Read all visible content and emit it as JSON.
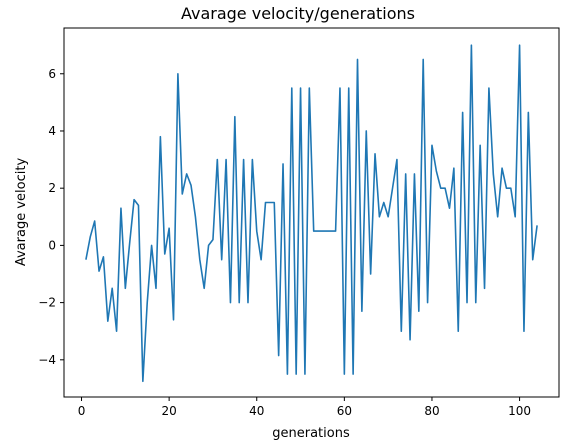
{
  "chart_data": {
    "type": "line",
    "title": "Avarage velocity/generations",
    "xlabel": "generations",
    "ylabel": "Avarage velocity",
    "xlim": [
      -4,
      109
    ],
    "ylim": [
      -5.3,
      7.6
    ],
    "xticks": [
      0,
      20,
      40,
      60,
      80,
      100
    ],
    "yticks": [
      -4,
      -2,
      0,
      2,
      4,
      6
    ],
    "xtick_labels": [
      "0",
      "20",
      "40",
      "60",
      "80",
      "100"
    ],
    "ytick_labels": [
      "−4",
      "−2",
      "0",
      "2",
      "4",
      "6"
    ],
    "grid": false,
    "legend": "none",
    "series": [
      {
        "color": "#1f77b4",
        "x": [
          1,
          2,
          3,
          4,
          5,
          6,
          7,
          8,
          9,
          10,
          11,
          12,
          13,
          14,
          15,
          16,
          17,
          18,
          19,
          20,
          21,
          22,
          23,
          24,
          25,
          26,
          27,
          28,
          29,
          30,
          31,
          32,
          33,
          34,
          35,
          36,
          37,
          38,
          39,
          40,
          41,
          42,
          43,
          44,
          45,
          46,
          47,
          48,
          49,
          50,
          51,
          52,
          53,
          54,
          55,
          56,
          57,
          58,
          59,
          60,
          61,
          62,
          63,
          64,
          65,
          66,
          67,
          68,
          69,
          70,
          71,
          72,
          73,
          74,
          75,
          76,
          77,
          78,
          79,
          80,
          81,
          82,
          83,
          84,
          85,
          86,
          87,
          88,
          89,
          90,
          91,
          92,
          93,
          94,
          95,
          96,
          97,
          98,
          99,
          100,
          101,
          102,
          103,
          104
        ],
        "y": [
          -0.5,
          0.3,
          0.85,
          -0.9,
          -0.4,
          -2.65,
          -1.5,
          -3.0,
          1.3,
          -1.5,
          0.1,
          1.6,
          1.4,
          -4.75,
          -2.0,
          0.0,
          -1.5,
          3.8,
          -0.3,
          0.6,
          -2.6,
          6.0,
          1.8,
          2.5,
          2.1,
          1.0,
          -0.5,
          -1.5,
          0.0,
          0.2,
          3.0,
          -0.5,
          3.0,
          -2.0,
          4.5,
          -2.0,
          3.0,
          -2.0,
          3.0,
          0.5,
          -0.5,
          1.5,
          1.5,
          1.5,
          -3.85,
          2.85,
          -4.5,
          5.5,
          -4.5,
          5.5,
          -4.5,
          5.5,
          0.5,
          0.5,
          0.5,
          0.5,
          0.5,
          0.5,
          5.5,
          -4.5,
          5.5,
          -4.5,
          6.5,
          -2.3,
          4.0,
          -1.0,
          3.2,
          1.0,
          1.5,
          1.0,
          2.0,
          3.0,
          -3.0,
          2.5,
          -3.3,
          2.5,
          -2.3,
          6.5,
          -2.0,
          3.5,
          2.6,
          2.0,
          2.0,
          1.3,
          2.7,
          -3.0,
          4.65,
          -2.0,
          7.0,
          -2.0,
          3.5,
          -1.5,
          5.5,
          2.5,
          1.0,
          2.7,
          2.0,
          2.0,
          1.0,
          7.0,
          -3.0,
          4.65,
          -0.5,
          0.7
        ]
      }
    ]
  }
}
